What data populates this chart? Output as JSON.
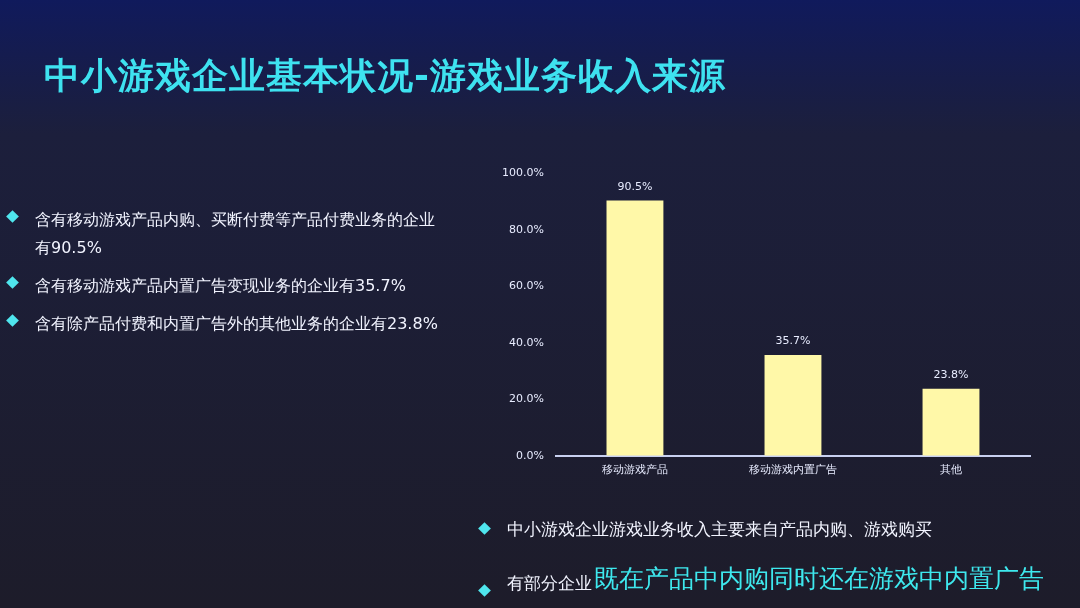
{
  "chart_data": {
    "type": "bar",
    "title": "中小游戏企业基本状况-游戏业务收入来源",
    "categories": [
      "移动游戏产品",
      "移动游戏内置广告",
      "其他"
    ],
    "values": [
      90.5,
      35.7,
      23.8
    ],
    "value_labels": [
      "90.5%",
      "35.7%",
      "23.8%"
    ],
    "color": "#fff8a8",
    "ylim": [
      0,
      100
    ],
    "yticks": [
      {
        "value": 0,
        "label": "0.0%"
      },
      {
        "value": 20,
        "label": "20.0%"
      },
      {
        "value": 40,
        "label": "40.0%"
      },
      {
        "value": 60,
        "label": "60.0%"
      },
      {
        "value": 80,
        "label": "80.0%"
      },
      {
        "value": 100,
        "label": "100.0%"
      }
    ],
    "grid": false,
    "annotations": [
      "含有移动游戏产品内购、买断付费等产品付费业务的企业有90.5%",
      "含有移动游戏产品内置广告变现业务的企业有35.7%",
      "含有除产品付费和内置广告外的其他业务的企业有23.8%",
      "中小游戏企业游戏业务收入主要来自产品内购、游戏购买",
      "有部分企业",
      "既在产品中内购同时还在游戏中内置广告"
    ]
  }
}
